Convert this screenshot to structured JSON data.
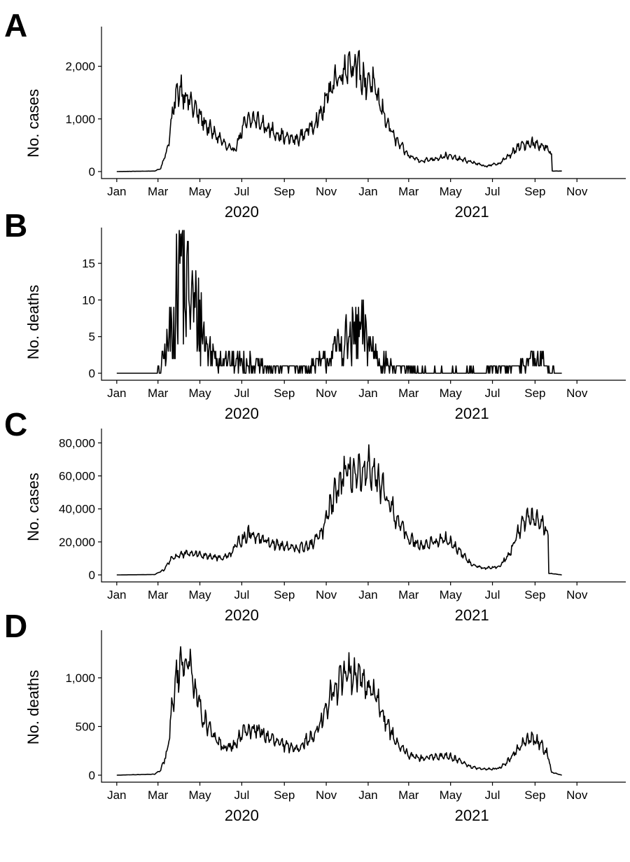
{
  "chart_data": [
    {
      "panel": "A",
      "type": "line",
      "ylabel": "No. cases",
      "ylim": [
        0,
        2700
      ],
      "yticks": [
        0,
        1000,
        2000
      ],
      "ytick_labels": [
        "0",
        "1,000",
        "2,000"
      ],
      "xlim": [
        "2020-01-01",
        "2021-12-31"
      ],
      "xticks": [
        "2020-01-01",
        "2020-03-01",
        "2020-05-01",
        "2020-07-01",
        "2020-09-01",
        "2020-11-01",
        "2021-01-01",
        "2021-03-01",
        "2021-05-01",
        "2021-07-01",
        "2021-09-01",
        "2021-11-01"
      ],
      "xtick_labels": [
        "Jan",
        "Mar",
        "May",
        "Jul",
        "Sep",
        "Nov",
        "Jan",
        "Mar",
        "May",
        "Jul",
        "Sep",
        "Nov"
      ],
      "year_labels": [
        {
          "label": "2020",
          "x": "2020-07-01"
        },
        {
          "label": "2021",
          "x": "2021-06-01"
        }
      ],
      "grid": false,
      "series": [
        {
          "x": [
            "2020-01-01",
            "2020-02-25",
            "2020-03-05",
            "2020-03-15",
            "2020-03-25",
            "2020-04-01",
            "2020-04-08",
            "2020-04-15",
            "2020-05-01",
            "2020-05-15",
            "2020-06-01",
            "2020-06-10",
            "2020-06-20",
            "2020-07-05",
            "2020-07-20",
            "2020-08-10",
            "2020-09-01",
            "2020-09-20",
            "2020-10-10",
            "2020-10-25",
            "2020-11-10",
            "2020-11-25",
            "2020-12-05",
            "2020-12-15",
            "2020-12-25",
            "2021-01-05",
            "2021-01-20",
            "2021-02-10",
            "2021-03-01",
            "2021-03-20",
            "2021-04-10",
            "2021-04-25",
            "2021-05-10",
            "2021-06-01",
            "2021-06-20",
            "2021-07-10",
            "2021-07-25",
            "2021-08-10",
            "2021-08-25",
            "2021-09-10",
            "2021-09-20",
            "2021-09-25",
            "2021-09-26",
            "2021-10-10"
          ],
          "y": [
            0,
            10,
            60,
            450,
            1300,
            1600,
            1500,
            1350,
            1050,
            800,
            600,
            450,
            400,
            900,
            1000,
            800,
            650,
            600,
            850,
            1100,
            1700,
            1900,
            2100,
            2000,
            1700,
            1750,
            1200,
            600,
            300,
            200,
            250,
            300,
            250,
            180,
            100,
            150,
            300,
            480,
            550,
            500,
            420,
            300,
            10,
            10
          ]
        }
      ]
    },
    {
      "panel": "B",
      "type": "line",
      "ylabel": "No. deaths",
      "ylim": [
        0,
        19.5
      ],
      "yticks": [
        0,
        5,
        10,
        15
      ],
      "ytick_labels": [
        "0",
        "5",
        "10",
        "15"
      ],
      "xlim": [
        "2020-01-01",
        "2021-12-31"
      ],
      "xticks": [
        "2020-01-01",
        "2020-03-01",
        "2020-05-01",
        "2020-07-01",
        "2020-09-01",
        "2020-11-01",
        "2021-01-01",
        "2021-03-01",
        "2021-05-01",
        "2021-07-01",
        "2021-09-01",
        "2021-11-01"
      ],
      "xtick_labels": [
        "Jan",
        "Mar",
        "May",
        "Jul",
        "Sep",
        "Nov",
        "Jan",
        "Mar",
        "May",
        "Jul",
        "Sep",
        "Nov"
      ],
      "year_labels": [
        {
          "label": "2020",
          "x": "2020-07-01"
        },
        {
          "label": "2021",
          "x": "2021-06-01"
        }
      ],
      "grid": false,
      "series": [
        {
          "x": [
            "2020-01-01",
            "2020-02-25",
            "2020-03-05",
            "2020-03-15",
            "2020-03-25",
            "2020-04-01",
            "2020-04-05",
            "2020-04-10",
            "2020-04-15",
            "2020-04-22",
            "2020-05-01",
            "2020-05-10",
            "2020-05-20",
            "2020-06-10",
            "2020-07-01",
            "2020-08-01",
            "2020-09-01",
            "2020-10-01",
            "2020-11-01",
            "2020-11-20",
            "2020-12-10",
            "2020-12-25",
            "2021-01-05",
            "2021-01-20",
            "2021-02-10",
            "2021-03-10",
            "2021-04-10",
            "2021-05-10",
            "2021-06-10",
            "2021-07-10",
            "2021-08-01",
            "2021-08-20",
            "2021-09-10",
            "2021-09-20",
            "2021-10-10"
          ],
          "y": [
            0,
            0,
            1,
            4,
            8,
            14,
            19,
            10,
            12,
            9,
            8,
            4,
            3,
            2,
            2,
            1,
            1,
            1,
            2,
            4,
            5,
            6,
            4,
            2,
            1,
            0.5,
            0.5,
            0.5,
            0.5,
            1,
            1,
            2,
            2,
            1,
            0
          ]
        }
      ]
    },
    {
      "panel": "C",
      "type": "line",
      "ylabel": "No. cases",
      "ylim": [
        0,
        87000
      ],
      "yticks": [
        0,
        20000,
        40000,
        60000,
        80000
      ],
      "ytick_labels": [
        "0",
        "20,000",
        "40,000",
        "60,000",
        "80,000"
      ],
      "xlim": [
        "2020-01-01",
        "2021-12-31"
      ],
      "xticks": [
        "2020-01-01",
        "2020-03-01",
        "2020-05-01",
        "2020-07-01",
        "2020-09-01",
        "2020-11-01",
        "2021-01-01",
        "2021-03-01",
        "2021-05-01",
        "2021-07-01",
        "2021-09-01",
        "2021-11-01"
      ],
      "xtick_labels": [
        "Jan",
        "Mar",
        "May",
        "Jul",
        "Sep",
        "Nov",
        "Jan",
        "Mar",
        "May",
        "Jul",
        "Sep",
        "Nov"
      ],
      "year_labels": [
        {
          "label": "2020",
          "x": "2020-07-01"
        },
        {
          "label": "2021",
          "x": "2021-06-01"
        }
      ],
      "grid": false,
      "series": [
        {
          "x": [
            "2020-01-01",
            "2020-02-25",
            "2020-03-10",
            "2020-03-20",
            "2020-04-01",
            "2020-04-20",
            "2020-05-10",
            "2020-06-01",
            "2020-06-15",
            "2020-07-01",
            "2020-07-15",
            "2020-08-10",
            "2020-09-01",
            "2020-09-20",
            "2020-10-10",
            "2020-10-25",
            "2020-11-10",
            "2020-11-25",
            "2020-12-10",
            "2020-12-25",
            "2021-01-05",
            "2021-01-20",
            "2021-02-10",
            "2021-03-01",
            "2021-03-20",
            "2021-04-10",
            "2021-04-25",
            "2021-05-15",
            "2021-06-01",
            "2021-06-20",
            "2021-07-10",
            "2021-07-25",
            "2021-08-10",
            "2021-08-25",
            "2021-09-10",
            "2021-09-20",
            "2021-09-21",
            "2021-10-10"
          ],
          "y": [
            0,
            200,
            3000,
            10000,
            12000,
            13000,
            12000,
            10000,
            13000,
            22000,
            25000,
            20000,
            17000,
            16000,
            18000,
            25000,
            45000,
            60000,
            62000,
            58000,
            65000,
            52000,
            35000,
            22000,
            18000,
            20000,
            22000,
            14000,
            6000,
            4000,
            5000,
            12000,
            28000,
            35000,
            32000,
            25000,
            1000,
            0
          ]
        }
      ]
    },
    {
      "panel": "D",
      "type": "line",
      "ylabel": "No. deaths",
      "ylim": [
        0,
        1460
      ],
      "yticks": [
        0,
        500,
        1000
      ],
      "ytick_labels": [
        "0",
        "500",
        "1,000"
      ],
      "xlim": [
        "2020-01-01",
        "2021-12-31"
      ],
      "xticks": [
        "2020-01-01",
        "2020-03-01",
        "2020-05-01",
        "2020-07-01",
        "2020-09-01",
        "2020-11-01",
        "2021-01-01",
        "2021-03-01",
        "2021-05-01",
        "2021-07-01",
        "2021-09-01",
        "2021-11-01"
      ],
      "xtick_labels": [
        "Jan",
        "Mar",
        "May",
        "Jul",
        "Sep",
        "Nov",
        "Jan",
        "Mar",
        "May",
        "Jul",
        "Sep",
        "Nov"
      ],
      "year_labels": [
        {
          "label": "2020",
          "x": "2020-07-01"
        },
        {
          "label": "2021",
          "x": "2021-06-01"
        }
      ],
      "grid": false,
      "series": [
        {
          "x": [
            "2020-01-01",
            "2020-02-25",
            "2020-03-05",
            "2020-03-15",
            "2020-03-25",
            "2020-04-05",
            "2020-04-15",
            "2020-04-25",
            "2020-05-05",
            "2020-05-20",
            "2020-06-05",
            "2020-06-20",
            "2020-07-05",
            "2020-07-20",
            "2020-08-10",
            "2020-09-01",
            "2020-09-20",
            "2020-10-10",
            "2020-10-25",
            "2020-11-10",
            "2020-11-25",
            "2020-12-05",
            "2020-12-15",
            "2020-12-25",
            "2021-01-05",
            "2021-01-20",
            "2021-02-10",
            "2021-03-01",
            "2021-03-20",
            "2021-04-10",
            "2021-04-25",
            "2021-05-15",
            "2021-06-01",
            "2021-06-20",
            "2021-07-10",
            "2021-07-25",
            "2021-08-10",
            "2021-08-25",
            "2021-09-10",
            "2021-09-20",
            "2021-09-25",
            "2021-10-10"
          ],
          "y": [
            0,
            10,
            50,
            250,
            900,
            1200,
            1150,
            900,
            600,
            400,
            280,
            300,
            450,
            480,
            380,
            300,
            280,
            380,
            550,
            850,
            1000,
            1050,
            1080,
            950,
            900,
            650,
            350,
            200,
            170,
            190,
            200,
            150,
            80,
            60,
            70,
            150,
            300,
            380,
            320,
            200,
            30,
            0
          ]
        }
      ]
    }
  ]
}
